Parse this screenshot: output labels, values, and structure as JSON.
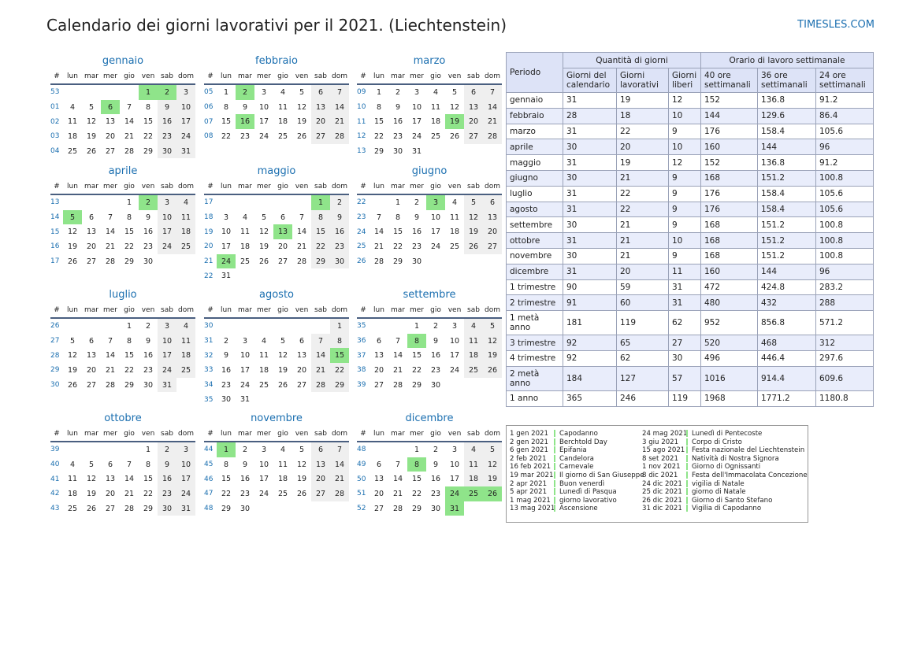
{
  "title": "Calendario dei giorni lavorativi per il 2021. (Liechtenstein)",
  "brand": "TIMESLES.COM",
  "weekdays": [
    "#",
    "lun",
    "mar",
    "mer",
    "gio",
    "ven",
    "sab",
    "dom"
  ],
  "months": [
    {
      "name": "gennaio",
      "rows": [
        [
          "53",
          "",
          "",
          "",
          "",
          "1",
          "2",
          "3"
        ],
        [
          "01",
          "4",
          "5",
          "6",
          "7",
          "8",
          "9",
          "10"
        ],
        [
          "02",
          "11",
          "12",
          "13",
          "14",
          "15",
          "16",
          "17"
        ],
        [
          "03",
          "18",
          "19",
          "20",
          "21",
          "22",
          "23",
          "24"
        ],
        [
          "04",
          "25",
          "26",
          "27",
          "28",
          "29",
          "30",
          "31"
        ]
      ],
      "hol": [
        "1",
        "2",
        "6"
      ]
    },
    {
      "name": "febbraio",
      "rows": [
        [
          "05",
          "1",
          "2",
          "3",
          "4",
          "5",
          "6",
          "7"
        ],
        [
          "06",
          "8",
          "9",
          "10",
          "11",
          "12",
          "13",
          "14"
        ],
        [
          "07",
          "15",
          "16",
          "17",
          "18",
          "19",
          "20",
          "21"
        ],
        [
          "08",
          "22",
          "23",
          "24",
          "25",
          "26",
          "27",
          "28"
        ]
      ],
      "hol": [
        "2",
        "16"
      ]
    },
    {
      "name": "marzo",
      "rows": [
        [
          "09",
          "1",
          "2",
          "3",
          "4",
          "5",
          "6",
          "7"
        ],
        [
          "10",
          "8",
          "9",
          "10",
          "11",
          "12",
          "13",
          "14"
        ],
        [
          "11",
          "15",
          "16",
          "17",
          "18",
          "19",
          "20",
          "21"
        ],
        [
          "12",
          "22",
          "23",
          "24",
          "25",
          "26",
          "27",
          "28"
        ],
        [
          "13",
          "29",
          "30",
          "31",
          "",
          "",
          "",
          ""
        ]
      ],
      "hol": [
        "19"
      ]
    },
    {
      "name": "aprile",
      "rows": [
        [
          "13",
          "",
          "",
          "",
          "1",
          "2",
          "3",
          "4"
        ],
        [
          "14",
          "5",
          "6",
          "7",
          "8",
          "9",
          "10",
          "11"
        ],
        [
          "15",
          "12",
          "13",
          "14",
          "15",
          "16",
          "17",
          "18"
        ],
        [
          "16",
          "19",
          "20",
          "21",
          "22",
          "23",
          "24",
          "25"
        ],
        [
          "17",
          "26",
          "27",
          "28",
          "29",
          "30",
          "",
          ""
        ]
      ],
      "hol": [
        "2",
        "5"
      ]
    },
    {
      "name": "maggio",
      "rows": [
        [
          "17",
          "",
          "",
          "",
          "",
          "",
          "1",
          "2"
        ],
        [
          "18",
          "3",
          "4",
          "5",
          "6",
          "7",
          "8",
          "9"
        ],
        [
          "19",
          "10",
          "11",
          "12",
          "13",
          "14",
          "15",
          "16"
        ],
        [
          "20",
          "17",
          "18",
          "19",
          "20",
          "21",
          "22",
          "23"
        ],
        [
          "21",
          "24",
          "25",
          "26",
          "27",
          "28",
          "29",
          "30"
        ],
        [
          "22",
          "31",
          "",
          "",
          "",
          "",
          "",
          ""
        ]
      ],
      "hol": [
        "1",
        "13",
        "24"
      ]
    },
    {
      "name": "giugno",
      "rows": [
        [
          "22",
          "",
          "1",
          "2",
          "3",
          "4",
          "5",
          "6"
        ],
        [
          "23",
          "7",
          "8",
          "9",
          "10",
          "11",
          "12",
          "13"
        ],
        [
          "24",
          "14",
          "15",
          "16",
          "17",
          "18",
          "19",
          "20"
        ],
        [
          "25",
          "21",
          "22",
          "23",
          "24",
          "25",
          "26",
          "27"
        ],
        [
          "26",
          "28",
          "29",
          "30",
          "",
          "",
          "",
          ""
        ]
      ],
      "hol": [
        "3"
      ]
    },
    {
      "name": "luglio",
      "rows": [
        [
          "26",
          "",
          "",
          "",
          "1",
          "2",
          "3",
          "4"
        ],
        [
          "27",
          "5",
          "6",
          "7",
          "8",
          "9",
          "10",
          "11"
        ],
        [
          "28",
          "12",
          "13",
          "14",
          "15",
          "16",
          "17",
          "18"
        ],
        [
          "29",
          "19",
          "20",
          "21",
          "22",
          "23",
          "24",
          "25"
        ],
        [
          "30",
          "26",
          "27",
          "28",
          "29",
          "30",
          "31",
          ""
        ]
      ],
      "hol": []
    },
    {
      "name": "agosto",
      "rows": [
        [
          "30",
          "",
          "",
          "",
          "",
          "",
          "",
          "1"
        ],
        [
          "31",
          "2",
          "3",
          "4",
          "5",
          "6",
          "7",
          "8"
        ],
        [
          "32",
          "9",
          "10",
          "11",
          "12",
          "13",
          "14",
          "15"
        ],
        [
          "33",
          "16",
          "17",
          "18",
          "19",
          "20",
          "21",
          "22"
        ],
        [
          "34",
          "23",
          "24",
          "25",
          "26",
          "27",
          "28",
          "29"
        ],
        [
          "35",
          "30",
          "31",
          "",
          "",
          "",
          "",
          ""
        ]
      ],
      "hol": [
        "15"
      ]
    },
    {
      "name": "settembre",
      "rows": [
        [
          "35",
          "",
          "",
          "1",
          "2",
          "3",
          "4",
          "5"
        ],
        [
          "36",
          "6",
          "7",
          "8",
          "9",
          "10",
          "11",
          "12"
        ],
        [
          "37",
          "13",
          "14",
          "15",
          "16",
          "17",
          "18",
          "19"
        ],
        [
          "38",
          "20",
          "21",
          "22",
          "23",
          "24",
          "25",
          "26"
        ],
        [
          "39",
          "27",
          "28",
          "29",
          "30",
          "",
          "",
          ""
        ]
      ],
      "hol": [
        "8"
      ]
    },
    {
      "name": "ottobre",
      "rows": [
        [
          "39",
          "",
          "",
          "",
          "",
          "1",
          "2",
          "3"
        ],
        [
          "40",
          "4",
          "5",
          "6",
          "7",
          "8",
          "9",
          "10"
        ],
        [
          "41",
          "11",
          "12",
          "13",
          "14",
          "15",
          "16",
          "17"
        ],
        [
          "42",
          "18",
          "19",
          "20",
          "21",
          "22",
          "23",
          "24"
        ],
        [
          "43",
          "25",
          "26",
          "27",
          "28",
          "29",
          "30",
          "31"
        ]
      ],
      "hol": []
    },
    {
      "name": "novembre",
      "rows": [
        [
          "44",
          "1",
          "2",
          "3",
          "4",
          "5",
          "6",
          "7"
        ],
        [
          "45",
          "8",
          "9",
          "10",
          "11",
          "12",
          "13",
          "14"
        ],
        [
          "46",
          "15",
          "16",
          "17",
          "18",
          "19",
          "20",
          "21"
        ],
        [
          "47",
          "22",
          "23",
          "24",
          "25",
          "26",
          "27",
          "28"
        ],
        [
          "48",
          "29",
          "30",
          "",
          "",
          "",
          "",
          ""
        ]
      ],
      "hol": [
        "1"
      ]
    },
    {
      "name": "dicembre",
      "rows": [
        [
          "48",
          "",
          "",
          "1",
          "2",
          "3",
          "4",
          "5"
        ],
        [
          "49",
          "6",
          "7",
          "8",
          "9",
          "10",
          "11",
          "12"
        ],
        [
          "50",
          "13",
          "14",
          "15",
          "16",
          "17",
          "18",
          "19"
        ],
        [
          "51",
          "20",
          "21",
          "22",
          "23",
          "24",
          "25",
          "26"
        ],
        [
          "52",
          "27",
          "28",
          "29",
          "30",
          "31",
          "",
          ""
        ]
      ],
      "hol": [
        "8",
        "24",
        "25",
        "26",
        "31"
      ]
    }
  ],
  "stats": {
    "h_period": "Periodo",
    "h_qty": "Quantità di giorni",
    "h_hours": "Orario di lavoro settimanale",
    "cols": [
      "Giorni del calendario",
      "Giorni lavorativi",
      "Giorni liberi",
      "40 ore settimanali",
      "36 ore settimanali",
      "24 ore settimanali"
    ],
    "rows": [
      [
        "gennaio",
        "31",
        "19",
        "12",
        "152",
        "136.8",
        "91.2"
      ],
      [
        "febbraio",
        "28",
        "18",
        "10",
        "144",
        "129.6",
        "86.4"
      ],
      [
        "marzo",
        "31",
        "22",
        "9",
        "176",
        "158.4",
        "105.6"
      ],
      [
        "aprile",
        "30",
        "20",
        "10",
        "160",
        "144",
        "96"
      ],
      [
        "maggio",
        "31",
        "19",
        "12",
        "152",
        "136.8",
        "91.2"
      ],
      [
        "giugno",
        "30",
        "21",
        "9",
        "168",
        "151.2",
        "100.8"
      ],
      [
        "luglio",
        "31",
        "22",
        "9",
        "176",
        "158.4",
        "105.6"
      ],
      [
        "agosto",
        "31",
        "22",
        "9",
        "176",
        "158.4",
        "105.6"
      ],
      [
        "settembre",
        "30",
        "21",
        "9",
        "168",
        "151.2",
        "100.8"
      ],
      [
        "ottobre",
        "31",
        "21",
        "10",
        "168",
        "151.2",
        "100.8"
      ],
      [
        "novembre",
        "30",
        "21",
        "9",
        "168",
        "151.2",
        "100.8"
      ],
      [
        "dicembre",
        "31",
        "20",
        "11",
        "160",
        "144",
        "96"
      ],
      [
        "1 trimestre",
        "90",
        "59",
        "31",
        "472",
        "424.8",
        "283.2"
      ],
      [
        "2 trimestre",
        "91",
        "60",
        "31",
        "480",
        "432",
        "288"
      ],
      [
        "1 metà anno",
        "181",
        "119",
        "62",
        "952",
        "856.8",
        "571.2"
      ],
      [
        "3 trimestre",
        "92",
        "65",
        "27",
        "520",
        "468",
        "312"
      ],
      [
        "4 trimestre",
        "92",
        "62",
        "30",
        "496",
        "446.4",
        "297.6"
      ],
      [
        "2 metà anno",
        "184",
        "127",
        "57",
        "1016",
        "914.4",
        "609.6"
      ],
      [
        "1 anno",
        "365",
        "246",
        "119",
        "1968",
        "1771.2",
        "1180.8"
      ]
    ]
  },
  "holidays": [
    [
      "1 gen 2021",
      "Capodanno"
    ],
    [
      "2 gen 2021",
      "Berchtold Day"
    ],
    [
      "6 gen 2021",
      "Epifania"
    ],
    [
      "2 feb 2021",
      "Candelora"
    ],
    [
      "16 feb 2021",
      "Carnevale"
    ],
    [
      "19 mar 2021",
      "Il giorno di San Giuseppe"
    ],
    [
      "2 apr 2021",
      "Buon venerdì"
    ],
    [
      "5 apr 2021",
      "Lunedì di Pasqua"
    ],
    [
      "1 mag 2021",
      "giorno lavorativo"
    ],
    [
      "13 mag 2021",
      "Ascensione"
    ],
    [
      "24 mag 2021",
      "Lunedì di Pentecoste"
    ],
    [
      "3 giu 2021",
      "Corpo di Cristo"
    ],
    [
      "15 ago 2021",
      "Festa nazionale del Liechtenstein"
    ],
    [
      "8 set 2021",
      "Natività di Nostra Signora"
    ],
    [
      "1 nov 2021",
      "Giorno di Ognissanti"
    ],
    [
      "8 dic 2021",
      "Festa dell'Immacolata Concezione"
    ],
    [
      "24 dic 2021",
      "vigilia di Natale"
    ],
    [
      "25 dic 2021",
      "giorno di Natale"
    ],
    [
      "26 dic 2021",
      "Giorno di Santo Stefano"
    ],
    [
      "31 dic 2021",
      "Vigilia di Capodanno"
    ]
  ]
}
